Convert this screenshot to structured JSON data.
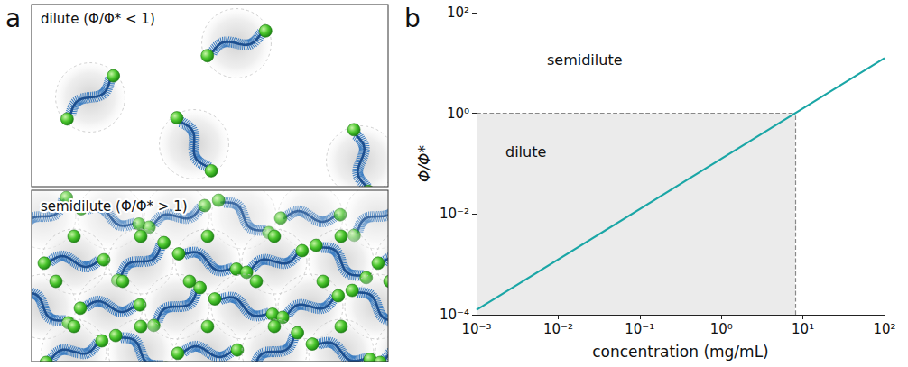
{
  "panel_labels": [
    "a",
    "b"
  ],
  "diagram": {
    "boxes": [
      {
        "label": "dilute (Φ/Φ* < 1)"
      },
      {
        "label": "semidilute (Φ/Φ* > 1)"
      }
    ]
  },
  "chart_data": {
    "type": "line",
    "x": [
      0.001,
      100
    ],
    "values": [
      0.000125,
      12.5
    ],
    "color": "#1aa6a6",
    "xlabel": "concentration (mg/mL)",
    "ylabel": "Φ/Φ*",
    "log": true,
    "grid": false,
    "xlim": [
      0.001,
      100
    ],
    "ylim": [
      0.0001,
      100
    ],
    "xticks": [
      {
        "value": 0.001,
        "label": "10⁻³"
      },
      {
        "value": 0.01,
        "label": "10⁻²"
      },
      {
        "value": 0.1,
        "label": "10⁻¹"
      },
      {
        "value": 1,
        "label": "10⁰"
      },
      {
        "value": 10,
        "label": "10¹"
      },
      {
        "value": 100,
        "label": "10²"
      }
    ],
    "yticks": [
      {
        "value": 0.0001,
        "label": "10⁻⁴"
      },
      {
        "value": 0.01,
        "label": "10⁻²"
      },
      {
        "value": 1,
        "label": "10⁰"
      },
      {
        "value": 100,
        "label": "10²"
      }
    ],
    "crossover": {
      "x": 8,
      "y": 1
    },
    "annotations": [
      "semidilute",
      "dilute"
    ]
  }
}
